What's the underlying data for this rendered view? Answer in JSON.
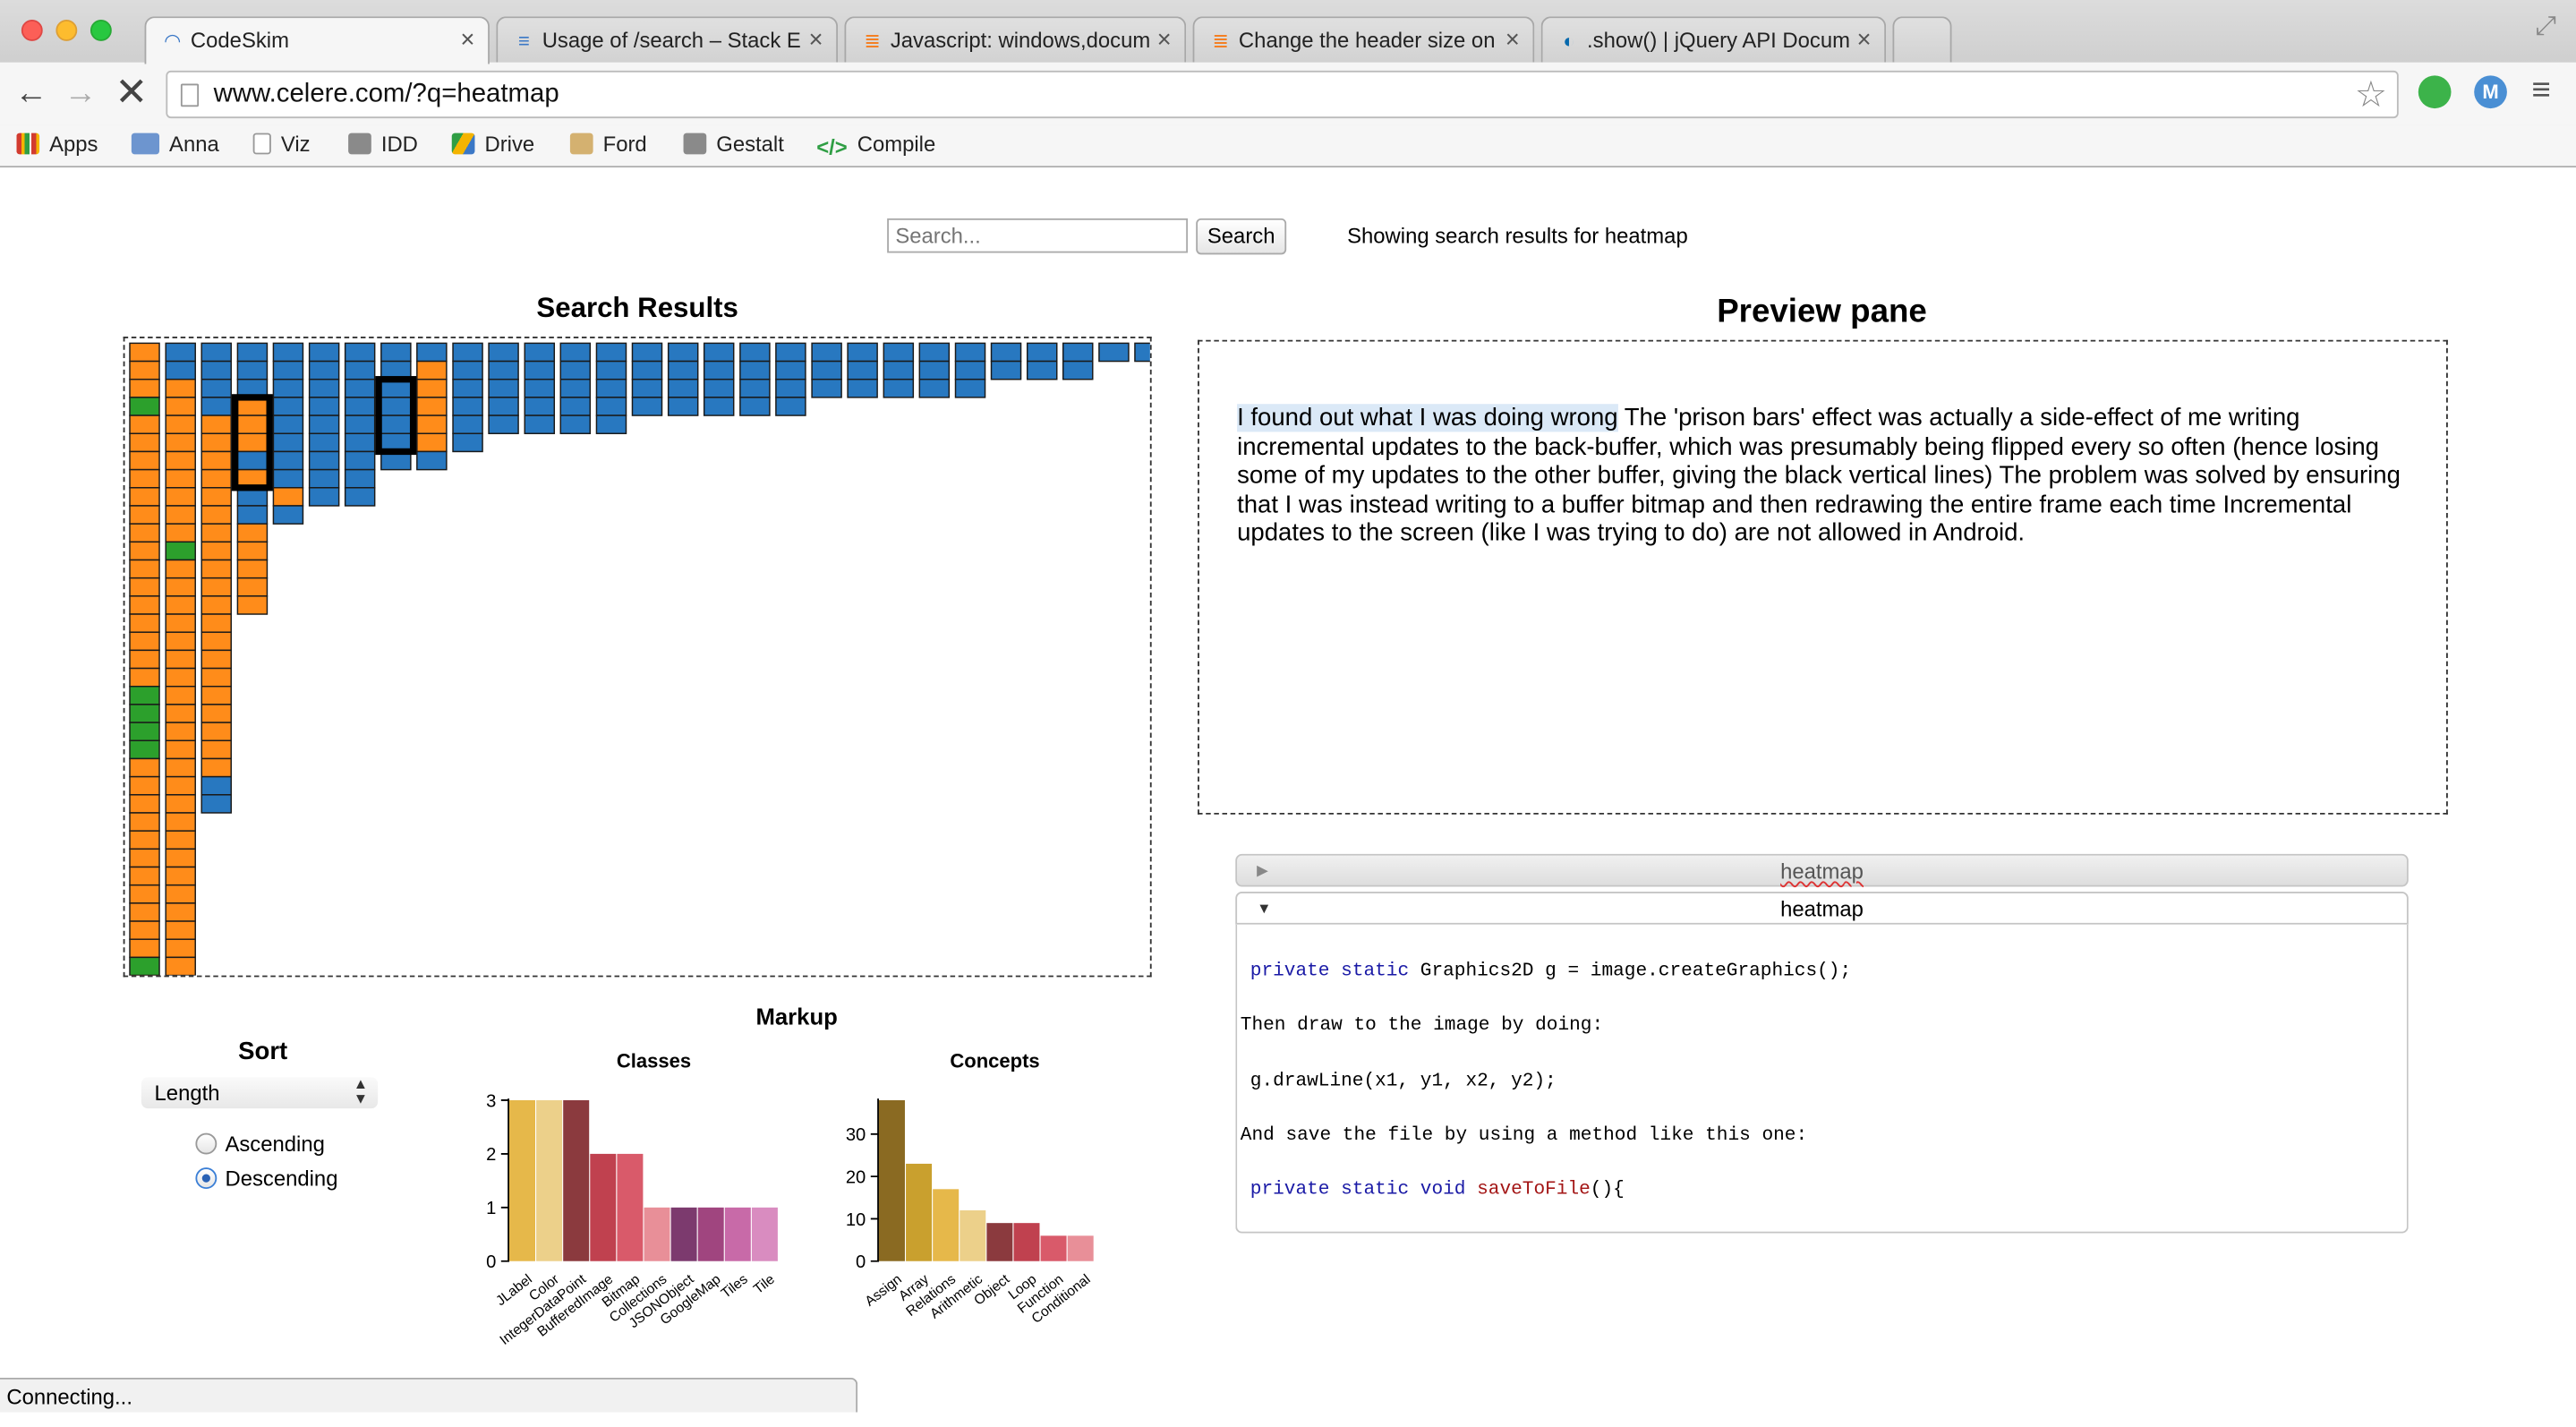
{
  "browser": {
    "tabs": [
      {
        "title": "CodeSkim",
        "active": true,
        "favicon": "loading-spinner-icon"
      },
      {
        "title": "Usage of /search – Stack E",
        "favicon": "stackexchange-icon"
      },
      {
        "title": "Javascript: windows,docum",
        "favicon": "stackoverflow-icon"
      },
      {
        "title": "Change the header size on",
        "favicon": "stackoverflow-icon"
      },
      {
        "title": ".show() | jQuery API Docum",
        "favicon": "jquery-icon"
      }
    ],
    "address": "www.celere.com/?q=heatmap",
    "bookmarks": [
      {
        "label": "Apps",
        "icon": "apps-grid-icon",
        "color": "#d23b2f"
      },
      {
        "label": "Anna",
        "icon": "folder-icon",
        "color": "#5b87c8"
      },
      {
        "label": "Viz",
        "icon": "page-icon",
        "color": "#ffffff"
      },
      {
        "label": "IDD",
        "icon": "apple-icon",
        "color": "#777777"
      },
      {
        "label": "Drive",
        "icon": "drive-icon",
        "color": "#f4b400"
      },
      {
        "label": "Ford",
        "icon": "vitruvian-icon",
        "color": "#c8a35a"
      },
      {
        "label": "Gestalt",
        "icon": "apple-icon",
        "color": "#777777"
      },
      {
        "label": "Compile",
        "icon": "code-icon",
        "color": "#2f9e44"
      }
    ],
    "status": "Connecting..."
  },
  "search": {
    "placeholder": "Search...",
    "button": "Search",
    "showing": "Showing search results for heatmap"
  },
  "results": {
    "title": "Search Results",
    "colors": {
      "orange": "#ff8c1a",
      "blue": "#2878c0",
      "green": "#2ca02c"
    }
  },
  "preview": {
    "title": "Preview pane",
    "highlight": "I found out what I was doing wrong",
    "text": " The 'prison bars' effect was actually a side-effect of me writing incremental updates to the back-buffer, which was presumably being flipped every so often (hence losing some of my updates to the other buffer, giving the black vertical lines) The problem was solved by ensuring that I was instead writing to a buffer bitmap and then redrawing the entire frame each time Incremental updates to the screen (like I was trying to do) are not allowed in Android."
  },
  "accordion": {
    "collapsed_title": "heatmap",
    "expanded_title": "heatmap",
    "code": {
      "l1_kw": "private static",
      "l1_rest": " Graphics2D g = image.createGraphics();",
      "l2": "Then draw to the image by doing:",
      "l3": "g.drawLine(x1, y1, x2, y2);",
      "l4": "And save the file by using a method like this one:",
      "l5_kw": "private static void",
      "l5_fn": "saveToFile",
      "l5_rest": "(){"
    }
  },
  "markup": {
    "title": "Markup"
  },
  "sort": {
    "title": "Sort",
    "selected": "Length",
    "ascending": "Ascending",
    "descending": "Descending",
    "order": "Descending"
  },
  "chart_data": [
    {
      "type": "bar",
      "title": "Classes",
      "categories": [
        "JLabel",
        "Color",
        "IntegerDataPoint",
        "BufferedImage",
        "Bitmap",
        "Collections",
        "JSONObject",
        "GoogleMap",
        "Tiles",
        "Tile"
      ],
      "values": [
        3,
        3,
        3,
        2,
        2,
        1,
        1,
        1,
        1,
        1
      ],
      "colors": [
        "#e6b84a",
        "#ecd08a",
        "#8b3a3e",
        "#c0414f",
        "#d95a6a",
        "#e88f98",
        "#7c3a6e",
        "#a0457f",
        "#c86aa8",
        "#d98cc0"
      ],
      "yticks": [
        0,
        1,
        2,
        3
      ],
      "ylim": [
        0,
        3
      ]
    },
    {
      "type": "bar",
      "title": "Concepts",
      "categories": [
        "Assign",
        "Array",
        "Relations",
        "Arithmetic",
        "Object",
        "Loop",
        "Function",
        "Conditional"
      ],
      "values": [
        38,
        23,
        17,
        12,
        9,
        9,
        6,
        6
      ],
      "colors": [
        "#8a6a22",
        "#c9a02e",
        "#e6b84a",
        "#ecd08a",
        "#8b3a3e",
        "#c0414f",
        "#d95a6a",
        "#e88f98"
      ],
      "yticks": [
        0,
        10,
        20,
        30
      ],
      "ylim": [
        0,
        38
      ]
    }
  ]
}
